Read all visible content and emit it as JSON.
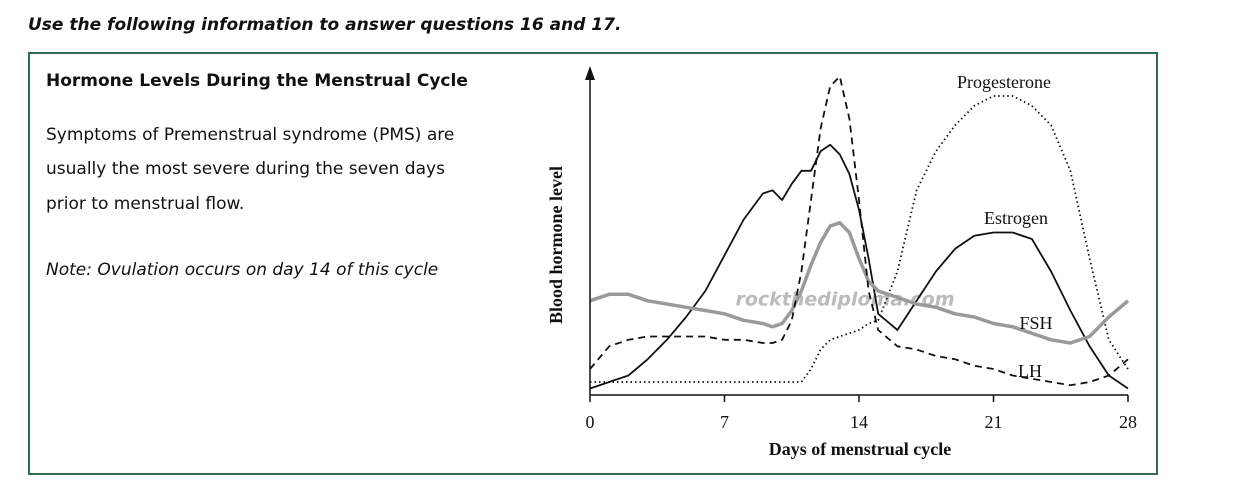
{
  "header": {
    "instruction": "Use the following information to answer questions 16 and 17."
  },
  "panel": {
    "title": "Hormone Levels During the Menstrual Cycle",
    "text_lines": [
      "Symptoms of Premenstrual syndrome (PMS) are",
      "usually the most severe during the seven days",
      "prior to menstrual flow."
    ],
    "note": "Note: Ovulation occurs on day 14 of this cycle"
  },
  "watermark": "rockthediploma.com",
  "chart_data": {
    "type": "line",
    "x_label": "Days of menstrual cycle",
    "y_label": "Blood hormone level",
    "x": [
      0,
      1,
      2,
      3,
      4,
      5,
      6,
      7,
      8,
      9,
      9.5,
      10,
      10.5,
      11,
      11.5,
      12,
      12.5,
      13,
      13.5,
      14,
      14.5,
      15,
      16,
      17,
      18,
      19,
      20,
      21,
      22,
      23,
      24,
      25,
      26,
      27,
      28
    ],
    "xlim": [
      0,
      28
    ],
    "xticks": [
      0,
      7,
      14,
      21,
      28
    ],
    "ylim": [
      0,
      100
    ],
    "series": [
      {
        "name": "Progesterone",
        "color": "#111111",
        "dash": "dotted",
        "values": [
          4,
          4,
          4,
          4,
          4,
          4,
          4,
          4,
          4,
          4,
          4,
          4,
          4,
          4,
          8,
          14,
          17,
          18,
          19,
          20,
          22,
          23,
          38,
          63,
          75,
          83,
          89,
          92,
          92,
          89,
          83,
          69,
          42,
          17,
          8
        ]
      },
      {
        "name": "Estrogen",
        "color": "#111111",
        "dash": "solid",
        "values": [
          2,
          4,
          6,
          11,
          17,
          24,
          32,
          43,
          54,
          62,
          63,
          60,
          65,
          69,
          69,
          75,
          77,
          74,
          68,
          57,
          42,
          25,
          20,
          29,
          38,
          45,
          49,
          50,
          50,
          48,
          38,
          26,
          15,
          6,
          2
        ]
      },
      {
        "name": "FSH",
        "color": "#9a9a9a",
        "dash": "solid",
        "values": [
          29,
          31,
          31,
          29,
          28,
          27,
          26,
          25,
          23,
          22,
          21,
          22,
          26,
          32,
          40,
          47,
          52,
          53,
          50,
          42,
          35,
          32,
          30,
          28,
          27,
          25,
          24,
          22,
          21,
          19,
          17,
          16,
          18,
          24,
          29
        ]
      },
      {
        "name": "LH",
        "color": "#111111",
        "dash": "dashed",
        "values": [
          8,
          15,
          17,
          18,
          18,
          18,
          18,
          17,
          17,
          16,
          16,
          17,
          23,
          38,
          60,
          82,
          95,
          98,
          85,
          60,
          32,
          20,
          15,
          14,
          12,
          11,
          9,
          8,
          6,
          5,
          4,
          3,
          4,
          6,
          11
        ]
      }
    ]
  }
}
